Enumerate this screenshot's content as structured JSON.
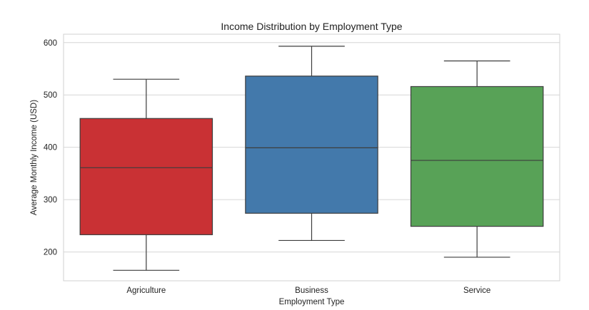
{
  "chart_data": {
    "type": "box",
    "title": "Income Distribution by Employment Type",
    "xlabel": "Employment Type",
    "ylabel": "Average Monthly Income (USD)",
    "ylim": [
      145,
      616
    ],
    "yticks": [
      200,
      300,
      400,
      500,
      600
    ],
    "grid": true,
    "categories": [
      "Agriculture",
      "Business",
      "Service"
    ],
    "boxes": [
      {
        "category": "Agriculture",
        "min": 165,
        "q1": 233,
        "median": 361,
        "q3": 455,
        "max": 530,
        "color": "#c93134"
      },
      {
        "category": "Business",
        "min": 222,
        "q1": 274,
        "median": 399,
        "q3": 536,
        "max": 593,
        "color": "#4379ab"
      },
      {
        "category": "Service",
        "min": 190,
        "q1": 249,
        "median": 375,
        "q3": 516,
        "max": 565,
        "color": "#58a257"
      }
    ]
  }
}
